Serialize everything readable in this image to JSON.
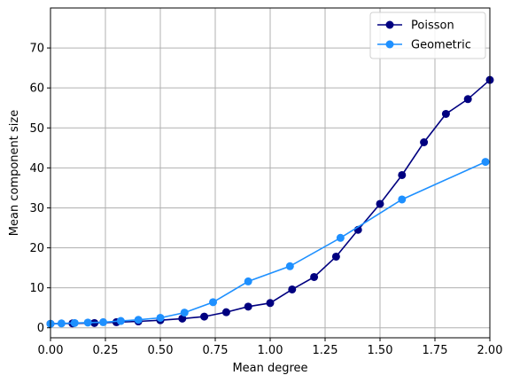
{
  "chart_data": {
    "type": "line",
    "title": "",
    "xlabel": "Mean degree",
    "ylabel": "Mean component size",
    "xlim": [
      0,
      2
    ],
    "ylim": [
      -2.5,
      80
    ],
    "xticks": [
      "0.00",
      "0.25",
      "0.50",
      "0.75",
      "1.00",
      "1.25",
      "1.50",
      "1.75",
      "2.00"
    ],
    "yticks": [
      "0",
      "10",
      "20",
      "30",
      "40",
      "50",
      "60",
      "70"
    ],
    "grid": true,
    "legend_position": "top-right",
    "series": [
      {
        "name": "Poisson",
        "color": "#000080",
        "marker": "circle",
        "x": [
          0.0,
          0.1,
          0.2,
          0.3,
          0.4,
          0.5,
          0.6,
          0.7,
          0.8,
          0.9,
          1.0,
          1.1,
          1.2,
          1.3,
          1.4,
          1.5,
          1.6,
          1.7,
          1.8,
          1.9,
          2.0
        ],
        "y": [
          1.0,
          1.1,
          1.2,
          1.4,
          1.6,
          1.9,
          2.3,
          2.8,
          3.9,
          5.3,
          6.2,
          9.6,
          12.7,
          17.8,
          24.5,
          31.0,
          38.2,
          46.4,
          53.5,
          57.2,
          62.0
        ]
      },
      {
        "name": "Geometric",
        "color": "#1e90ff",
        "marker": "circle",
        "x": [
          0.0,
          0.05,
          0.11,
          0.17,
          0.24,
          0.32,
          0.4,
          0.5,
          0.61,
          0.74,
          0.9,
          1.09,
          1.32,
          1.6,
          1.98
        ],
        "y": [
          1.0,
          1.1,
          1.2,
          1.3,
          1.4,
          1.7,
          2.0,
          2.5,
          3.8,
          6.4,
          11.6,
          15.4,
          22.5,
          32.1,
          41.5
        ]
      }
    ]
  }
}
